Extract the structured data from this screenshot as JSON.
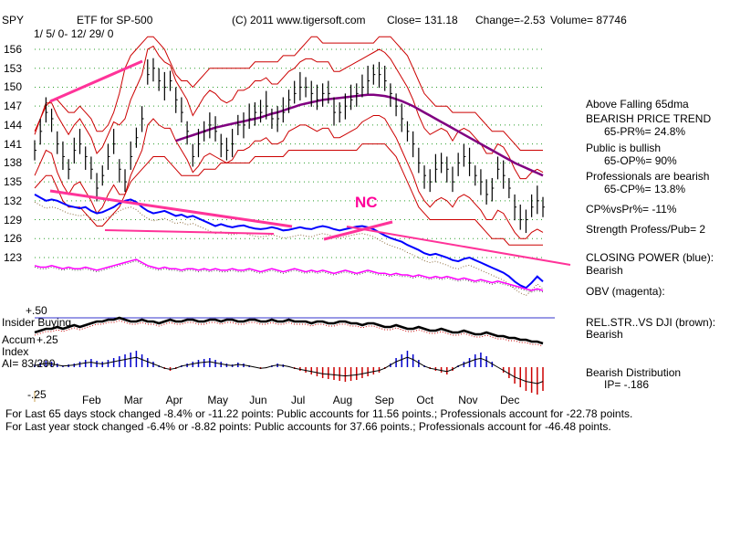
{
  "header": {
    "ticker": "SPY",
    "name": "ETF for SP-500",
    "daterange": "1/ 5/ 0- 12/ 29/ 0",
    "copyright": "(C) 2011 www.tigersoft.com",
    "close": "Close=  131.18",
    "change": "Change=-2.53",
    "volume": "Volume= 87746"
  },
  "annotation": "NC",
  "side_panel": {
    "l1": "Above Falling 65dma",
    "l2": "BEARISH PRICE TREND",
    "l3": "65-PR%= 24.8%",
    "l4": "Public is bullish",
    "l5": "65-OP%= 90%",
    "l6": "Professionals are bearish",
    "l7": "65-CP%= 13.8%",
    "l8": "CP%vsPr%= -11%",
    "l9": "Strength Profess/Pub= 2",
    "cp1": "CLOSING POWER (blue):",
    "cp2": "Bearish",
    "obv": "OBV (magenta):",
    "rs1": "REL.STR..VS DJI (brown):",
    "rs2": "Bearish",
    "bd1": "Bearish Distribution",
    "bd2": "IP= -.186"
  },
  "lower_labels": {
    "plus50": "+.50",
    "insider": "Insider Buying",
    "accum": "Accum",
    "plus25": "+.25",
    "index": "Index",
    "ai": "AI= 83/200",
    "minus25": "-.25"
  },
  "footer": {
    "line1": "For Last 65 days stock changed -8.4% or -11.22 points:  Public accounts for  11.56 points.;  Professionals account for -22.78 points.",
    "line2": "For Last year stock changed -6.4% or -8.82 points:  Public accounts for  37.66 points.;  Professionals account for -46.48 points."
  },
  "chart_data": {
    "type": "line",
    "title": "ETF for SP-500",
    "y_ticks": [
      156,
      153,
      150,
      147,
      144,
      141,
      138,
      135,
      132,
      129,
      126,
      123
    ],
    "months": [
      "Feb",
      "Mar",
      "Apr",
      "May",
      "Jun",
      "Jul",
      "Aug",
      "Sep",
      "Oct",
      "Nov",
      "Dec"
    ],
    "ylim": [
      121,
      158
    ],
    "grid": true,
    "colors": {
      "price": "#000000",
      "bands": "#cc0000",
      "ma65": "#800080",
      "closing_power": "#0000ff",
      "obv": "#ff00ff",
      "trendline": "#ff3399",
      "insider": "#000000",
      "accum_pos": "#0000cc",
      "accum_neg": "#cc0000"
    },
    "price_close": [
      140,
      143,
      146,
      145,
      141,
      139,
      137,
      140,
      141,
      139,
      137,
      134,
      136,
      139,
      141,
      137,
      135,
      139,
      142,
      145,
      152,
      153,
      151,
      150,
      151,
      148,
      146,
      143,
      139,
      141,
      143,
      144,
      143,
      141,
      140,
      141,
      144,
      144,
      145,
      146,
      146,
      147,
      145,
      145,
      146,
      148,
      149,
      150,
      150,
      149,
      148,
      149,
      149,
      146,
      146,
      147,
      148,
      149,
      150,
      151,
      152,
      152,
      151,
      149,
      147,
      145,
      143,
      141,
      138,
      136,
      135,
      137,
      138,
      137,
      135,
      138,
      139,
      138,
      136,
      135,
      133,
      134,
      137,
      136,
      134,
      131,
      129,
      129,
      131,
      132,
      131
    ],
    "upper_band": [
      143,
      145,
      147,
      148,
      148,
      147,
      146,
      146,
      147,
      146,
      145,
      143,
      143,
      144,
      146,
      149,
      153,
      155,
      156,
      157,
      158,
      158,
      157,
      156,
      154,
      152,
      151,
      151,
      150,
      151,
      152,
      153,
      153,
      153,
      153,
      153,
      153,
      153,
      153,
      154,
      154,
      154,
      154,
      154,
      155,
      155,
      155,
      156,
      157,
      158,
      158,
      157,
      157,
      157,
      157,
      157,
      157,
      157,
      157,
      157,
      157,
      158,
      158,
      158,
      157,
      156,
      155,
      153,
      151,
      149,
      148,
      147,
      147,
      147,
      146,
      146,
      146,
      146,
      146,
      145,
      144,
      143,
      143,
      143,
      142,
      141,
      140,
      140,
      140,
      140,
      140
    ],
    "lower_band": [
      134,
      135,
      136,
      136,
      134,
      132,
      131,
      131,
      131,
      130,
      129,
      128,
      128,
      129,
      130,
      131,
      133,
      135,
      136,
      137,
      138,
      139,
      139,
      139,
      138,
      137,
      136,
      136,
      136,
      136,
      137,
      137,
      137,
      138,
      138,
      138,
      138,
      138,
      138,
      139,
      139,
      139,
      139,
      139,
      139,
      140,
      140,
      140,
      140,
      140,
      140,
      140,
      140,
      140,
      140,
      140,
      140,
      140,
      141,
      141,
      141,
      141,
      141,
      140,
      139,
      137,
      135,
      133,
      131,
      130,
      129,
      129,
      129,
      129,
      129,
      129,
      129,
      129,
      129,
      128,
      127,
      126,
      126,
      126,
      125,
      125,
      125,
      125,
      125,
      125,
      125
    ],
    "ma65": [
      null,
      null,
      null,
      null,
      null,
      null,
      null,
      null,
      null,
      null,
      null,
      null,
      null,
      null,
      null,
      null,
      null,
      null,
      null,
      null,
      null,
      null,
      null,
      null,
      null,
      141.5,
      141.8,
      142.1,
      142.4,
      142.7,
      143.0,
      143.3,
      143.6,
      143.8,
      144.0,
      144.2,
      144.4,
      144.6,
      144.8,
      145.0,
      145.2,
      145.5,
      145.8,
      146.0,
      146.3,
      146.6,
      146.9,
      147.2,
      147.4,
      147.6,
      147.8,
      148.0,
      148.1,
      148.2,
      148.3,
      148.4,
      148.5,
      148.6,
      148.7,
      148.8,
      148.8,
      148.7,
      148.6,
      148.4,
      148.1,
      147.8,
      147.4,
      147.0,
      146.5,
      146.0,
      145.5,
      145.0,
      144.5,
      144.0,
      143.5,
      143.0,
      142.5,
      142.0,
      141.5,
      141.0,
      140.5,
      140.0,
      139.5,
      139.0,
      138.5,
      138.0,
      137.6,
      137.2,
      136.8,
      136.4,
      136.0
    ],
    "closing_power": [
      133,
      132.5,
      132,
      132.2,
      132,
      131.6,
      131.2,
      131,
      130.8,
      131,
      130.4,
      130,
      130.2,
      130.6,
      131,
      131.6,
      132,
      132.2,
      131.8,
      131,
      130.4,
      130,
      130.2,
      130.4,
      130,
      129.6,
      129.8,
      129.4,
      129.6,
      129.2,
      128.8,
      128.4,
      128,
      128.3,
      128,
      127.8,
      128,
      128.1,
      127.8,
      127.6,
      127.5,
      127.6,
      127.8,
      127.6,
      127.3,
      127.4,
      127.6,
      127.8,
      127.6,
      127.5,
      127.8,
      128,
      127.8,
      127.5,
      127.3,
      127.5,
      127.7,
      127.9,
      128,
      127.8,
      127.5,
      127,
      126.5,
      126.1,
      125.8,
      125.5,
      125,
      124.6,
      124.2,
      123.7,
      123.4,
      123.6,
      123.3,
      123.0,
      122.6,
      122.4,
      122.8,
      123.0,
      122.6,
      122.2,
      121.8,
      121.4,
      121.0,
      120.6,
      120.0,
      119.2,
      118.6,
      118.2,
      119.0,
      120.0,
      119.2
    ],
    "obv": [
      24,
      23,
      23,
      24,
      23,
      22,
      23,
      22,
      22,
      23,
      22,
      21,
      22,
      23,
      24,
      25,
      26,
      27,
      28,
      26,
      24,
      23,
      22,
      23,
      22,
      22,
      21,
      22,
      22,
      21,
      22,
      21,
      22,
      21,
      21,
      22,
      21,
      21,
      22,
      21,
      20,
      21,
      22,
      21,
      20,
      21,
      22,
      21,
      20,
      21,
      20,
      21,
      20,
      19,
      20,
      21,
      20,
      19,
      20,
      21,
      20,
      19,
      19,
      18,
      19,
      18,
      18,
      17,
      18,
      17,
      16,
      17,
      16,
      17,
      16,
      15,
      16,
      15,
      14,
      15,
      14,
      13,
      14,
      13,
      12,
      11,
      10,
      9,
      8,
      9,
      8
    ],
    "insider": [
      6,
      7,
      8,
      8,
      9,
      8,
      9,
      10,
      9,
      10,
      11,
      12,
      12,
      13,
      13,
      14,
      13,
      12,
      12,
      13,
      12,
      12,
      11,
      12,
      13,
      12,
      12,
      13,
      13,
      12,
      12,
      13,
      13,
      12,
      13,
      13,
      12,
      12,
      13,
      13,
      12,
      12,
      13,
      12,
      12,
      13,
      12,
      12,
      12,
      11,
      12,
      12,
      11,
      11,
      12,
      12,
      11,
      11,
      10,
      11,
      11,
      10,
      9,
      9,
      10,
      9,
      8,
      8,
      9,
      8,
      7,
      7,
      8,
      7,
      6,
      6,
      7,
      6,
      5,
      5,
      6,
      5,
      4,
      4,
      3,
      3,
      2,
      2,
      1,
      1,
      0
    ],
    "accum": [
      3,
      5,
      7,
      6,
      4,
      2,
      3,
      4,
      6,
      8,
      9,
      7,
      6,
      8,
      10,
      12,
      14,
      16,
      18,
      14,
      10,
      6,
      2,
      -2,
      -4,
      -2,
      2,
      4,
      6,
      8,
      9,
      10,
      8,
      6,
      4,
      3,
      5,
      4,
      2,
      0,
      -2,
      -1,
      2,
      4,
      3,
      1,
      -2,
      -4,
      -6,
      -8,
      -10,
      -12,
      -13,
      -14,
      -15,
      -16,
      -15,
      -14,
      -12,
      -10,
      -8,
      -6,
      -2,
      4,
      10,
      14,
      18,
      14,
      8,
      2,
      -2,
      -4,
      -6,
      -8,
      -4,
      2,
      6,
      10,
      14,
      16,
      12,
      6,
      0,
      -6,
      -12,
      -18,
      -22,
      -26,
      -28,
      -30,
      -26
    ]
  }
}
